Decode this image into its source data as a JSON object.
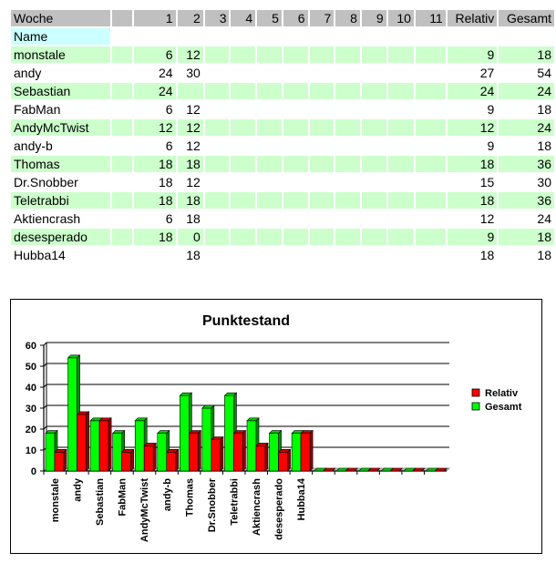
{
  "table": {
    "header": [
      "Woche",
      "",
      "1",
      "2",
      "3",
      "4",
      "5",
      "6",
      "7",
      "8",
      "9",
      "10",
      "11",
      "Relativ",
      "Gesamt"
    ],
    "name_label": "Name",
    "rows": [
      {
        "name": "monstale",
        "w1": "6",
        "w2": "12",
        "relativ": "9",
        "gesamt": "18"
      },
      {
        "name": "andy",
        "w1": "24",
        "w2": "30",
        "relativ": "27",
        "gesamt": "54"
      },
      {
        "name": "Sebastian",
        "w1": "24",
        "w2": "",
        "relativ": "24",
        "gesamt": "24"
      },
      {
        "name": "FabMan",
        "w1": "6",
        "w2": "12",
        "relativ": "9",
        "gesamt": "18"
      },
      {
        "name": "AndyMcTwist",
        "w1": "12",
        "w2": "12",
        "relativ": "12",
        "gesamt": "24"
      },
      {
        "name": "andy-b",
        "w1": "6",
        "w2": "12",
        "relativ": "9",
        "gesamt": "18"
      },
      {
        "name": "Thomas",
        "w1": "18",
        "w2": "18",
        "relativ": "18",
        "gesamt": "36"
      },
      {
        "name": "Dr.Snobber",
        "w1": "18",
        "w2": "12",
        "relativ": "15",
        "gesamt": "30"
      },
      {
        "name": "Teletrabbi",
        "w1": "18",
        "w2": "18",
        "relativ": "18",
        "gesamt": "36"
      },
      {
        "name": "Aktiencrash",
        "w1": "6",
        "w2": "18",
        "relativ": "12",
        "gesamt": "24"
      },
      {
        "name": "desesperado",
        "w1": "18",
        "w2": "0",
        "relativ": "9",
        "gesamt": "18"
      },
      {
        "name": "Hubba14",
        "w1": "",
        "w2": "18",
        "relativ": "18",
        "gesamt": "18"
      }
    ]
  },
  "colors": {
    "header_bg": "#c0c0c0",
    "row_highlight": "#ccffcc",
    "name_label_bg": "#ccffff",
    "relativ": "#ff0000",
    "gesamt": "#00ff00"
  },
  "chart_data": {
    "type": "bar",
    "title": "Punktestand",
    "categories": [
      "monstale",
      "andy",
      "Sebastian",
      "FabMan",
      "AndyMcTwist",
      "andy-b",
      "Thomas",
      "Dr.Snobber",
      "Teletrabbi",
      "Aktiencrash",
      "desesperado",
      "Hubba14",
      "",
      "",
      "",
      "",
      "",
      ""
    ],
    "series": [
      {
        "name": "Relativ",
        "color": "#ff0000",
        "values": [
          9,
          27,
          24,
          9,
          12,
          9,
          18,
          15,
          18,
          12,
          9,
          18,
          0,
          0,
          0,
          0,
          0,
          0
        ]
      },
      {
        "name": "Gesamt",
        "color": "#00ff00",
        "values": [
          18,
          54,
          24,
          18,
          24,
          18,
          36,
          30,
          36,
          24,
          18,
          18,
          0,
          0,
          0,
          0,
          0,
          0
        ]
      }
    ],
    "yticks": [
      "0",
      "10",
      "20",
      "30",
      "40",
      "50",
      "60"
    ],
    "ylim": [
      0,
      60
    ],
    "grid": true,
    "legend": "right",
    "style": "3d-bar"
  }
}
